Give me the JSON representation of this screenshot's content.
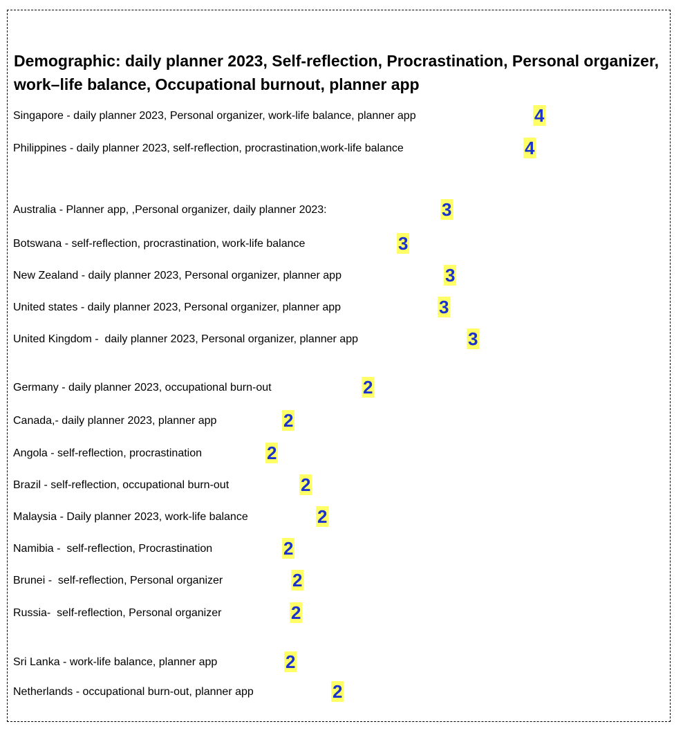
{
  "title": "Demographic: daily planner 2023, Self-reflection, Procrastination, Personal organizer, work–life balance, Occupational burnout, planner app",
  "rows": [
    {
      "text": "Singapore - daily planner 2023, Personal organizer, work-life balance, planner app",
      "score": "4"
    },
    {
      "text": "Philippines - daily planner 2023, self-reflection, procrastination,work-life balance",
      "score": "4"
    },
    {
      "text": "Australia - Planner app, ,Personal organizer, daily planner 2023:",
      "score": "3"
    },
    {
      "text": "Botswana - self-reflection, procrastination, work-life balance",
      "score": "3"
    },
    {
      "text": "New Zealand - daily planner 2023, Personal organizer, planner app",
      "score": "3"
    },
    {
      "text": "United states - daily planner 2023, Personal organizer, planner app",
      "score": "3"
    },
    {
      "text": "United Kingdom -  daily planner 2023, Personal organizer, planner app",
      "score": "3"
    },
    {
      "text": "Germany - daily planner 2023, occupational burn-out",
      "score": "2"
    },
    {
      "text": "Canada,- daily planner 2023, planner app",
      "score": "2"
    },
    {
      "text": "Angola - self-reflection, procrastination",
      "score": "2"
    },
    {
      "text": "Brazil - self-reflection, occupational burn-out",
      "score": "2"
    },
    {
      "text": "Malaysia - Daily planner 2023, work-life balance",
      "score": "2"
    },
    {
      "text": "Namibia -  self-reflection, Procrastination",
      "score": "2"
    },
    {
      "text": "Brunei -  self-reflection, Personal organizer",
      "score": "2"
    },
    {
      "text": "Russia-  self-reflection, Personal organizer",
      "score": "2"
    },
    {
      "text": "Sri Lanka - work-life balance, planner app",
      "score": "2"
    },
    {
      "text": "Netherlands - occupational burn-out, planner app",
      "score": "2"
    }
  ],
  "colors": {
    "highlight": "#ffff66",
    "score_text": "#1a33cc"
  }
}
